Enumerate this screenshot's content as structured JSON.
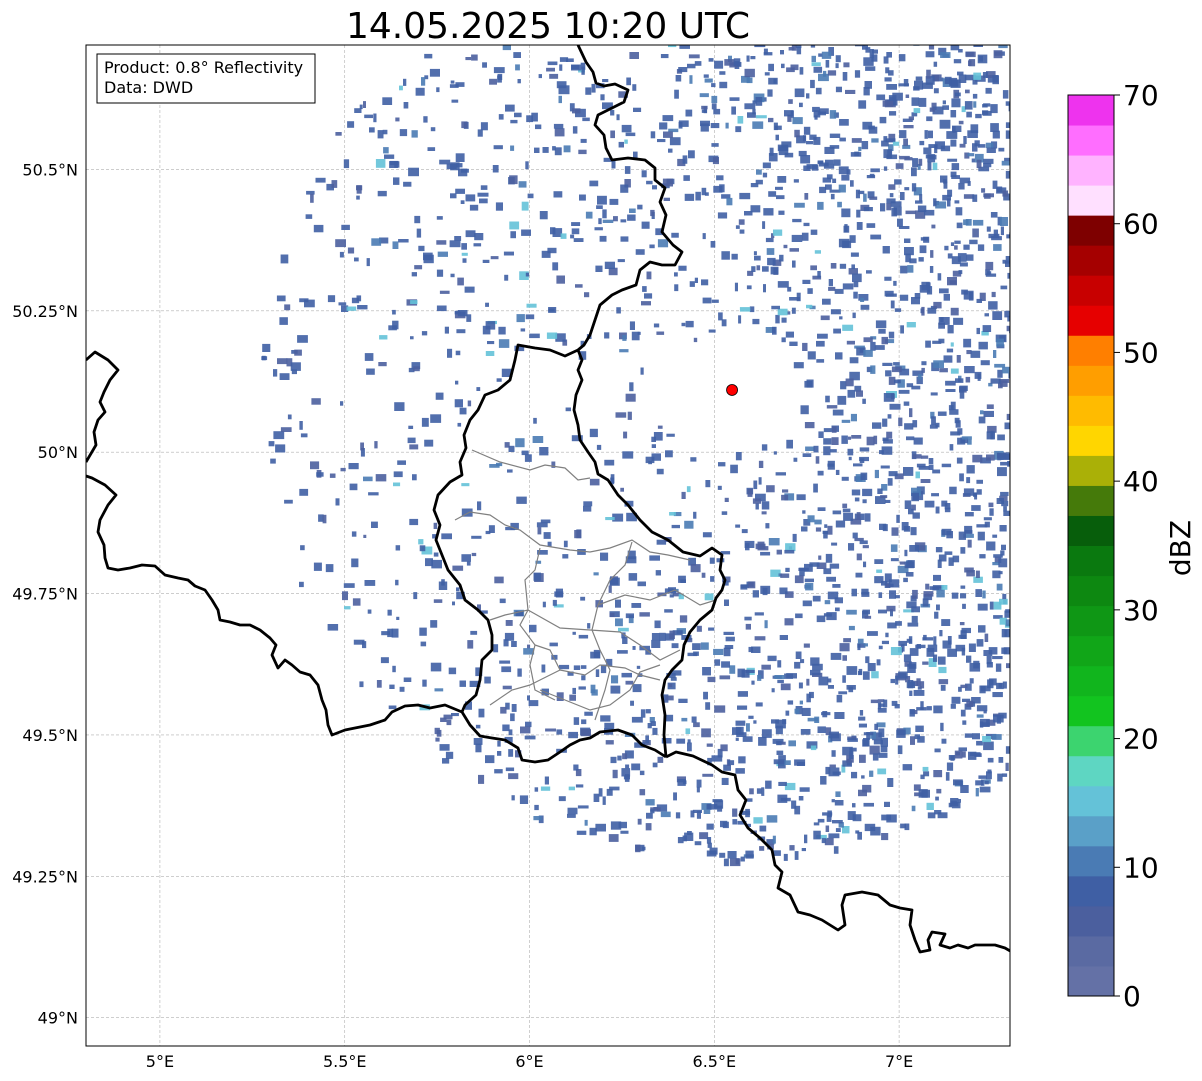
{
  "title": "14.05.2025 10:20 UTC",
  "info": {
    "product": "Product: 0.8° Reflectivity",
    "data": "Data: DWD"
  },
  "map": {
    "lon_range": [
      4.8,
      7.3
    ],
    "lat_range": [
      48.95,
      50.72
    ],
    "lon_ticks": [
      {
        "value": 5.0,
        "label": "5°E"
      },
      {
        "value": 5.5,
        "label": "5.5°E"
      },
      {
        "value": 6.0,
        "label": "6°E"
      },
      {
        "value": 6.5,
        "label": "6.5°E"
      },
      {
        "value": 7.0,
        "label": "7°E"
      }
    ],
    "lat_ticks": [
      {
        "value": 49.0,
        "label": "49°N"
      },
      {
        "value": 49.25,
        "label": "49.25°N"
      },
      {
        "value": 49.5,
        "label": "49.5°N"
      },
      {
        "value": 49.75,
        "label": "49.75°N"
      },
      {
        "value": 50.0,
        "label": "50°N"
      },
      {
        "value": 50.25,
        "label": "50.25°N"
      },
      {
        "value": 50.5,
        "label": "50.5°N"
      }
    ],
    "radar_site": {
      "lon": 6.548,
      "lat": 50.11,
      "color": "#ff0000"
    },
    "echo_range_km": 92
  },
  "colorbar": {
    "label": "dBZ",
    "min": 0,
    "max": 70,
    "ticks": [
      0,
      10,
      20,
      30,
      40,
      50,
      60,
      70
    ],
    "colors": [
      "#6471a6",
      "#5a6aa2",
      "#4b5f9e",
      "#3f5fa4",
      "#4a7bb4",
      "#5aa0c8",
      "#64c2d8",
      "#5ed6c2",
      "#3cd46f",
      "#12c41f",
      "#11b51d",
      "#11a618",
      "#0f9715",
      "#0d8811",
      "#0a790f",
      "#075e0b",
      "#457a0a",
      "#aab007",
      "#ffd600",
      "#ffbb00",
      "#ff9e00",
      "#ff7f00",
      "#e60000",
      "#c80000",
      "#a50000",
      "#7e0000",
      "#ffe0ff",
      "#ffb3ff",
      "#ff6eff",
      "#ee33ee"
    ]
  }
}
